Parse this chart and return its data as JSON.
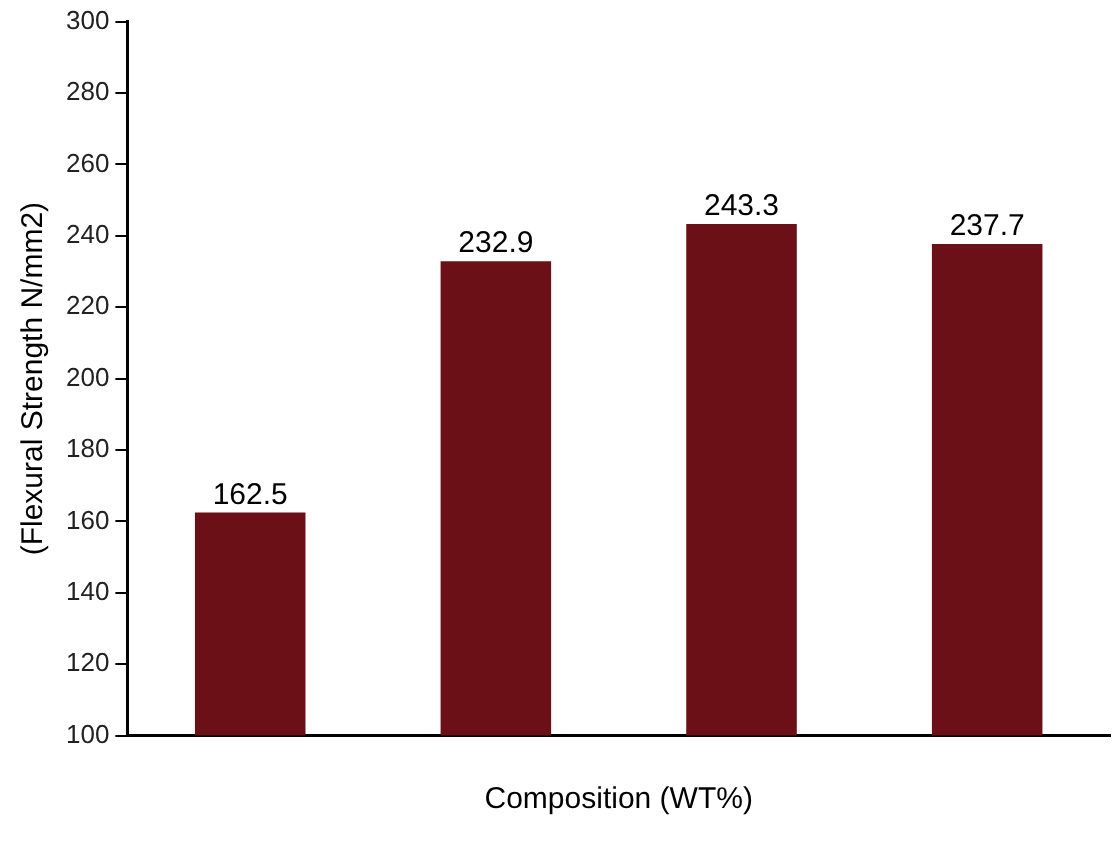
{
  "chart_data": {
    "type": "bar",
    "xlabel": "Composition (WT%)",
    "ylabel": "(Flexural Strength N/mm2)",
    "categories": [
      null,
      null,
      null,
      null
    ],
    "values": [
      162.5,
      232.9,
      243.3,
      237.7
    ],
    "color": "#6b1016",
    "ylim": [
      100,
      300
    ],
    "yticks": [
      100,
      120,
      140,
      160,
      180,
      200,
      220,
      240,
      260,
      280,
      300
    ],
    "data_labels": true,
    "grid": false,
    "legend": false
  }
}
